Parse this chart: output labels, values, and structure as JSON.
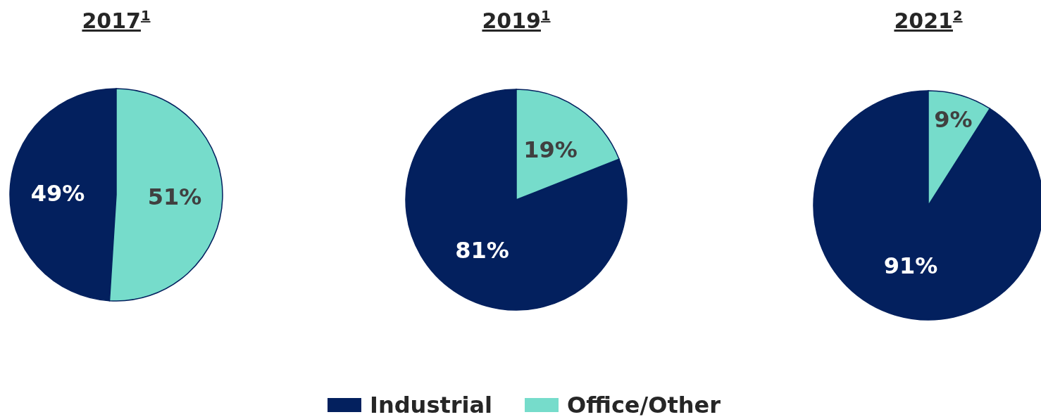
{
  "chart_data": [
    {
      "type": "pie",
      "title": "2017$^{1}$",
      "categories": [
        "Industrial",
        "Office/Other"
      ],
      "values": [
        49,
        51
      ],
      "colors": [
        "#03205e",
        "#76dccb"
      ],
      "value_labels": [
        "49%",
        "51%"
      ],
      "legend": "bottom"
    },
    {
      "type": "pie",
      "title": "2019$^{1}$",
      "categories": [
        null,
        null
      ],
      "values": [
        81,
        19
      ],
      "colors": [
        "#03205e",
        "#76dccb"
      ],
      "value_labels": [
        "81%",
        "19%"
      ]
    },
    {
      "type": "pie",
      "title": "2021$^{2}$",
      "categories": [
        null,
        null
      ],
      "values": [
        91,
        9
      ],
      "colors": [
        "#03205e",
        "#76dccb"
      ],
      "value_labels": [
        "91%",
        "9%"
      ]
    }
  ]
}
